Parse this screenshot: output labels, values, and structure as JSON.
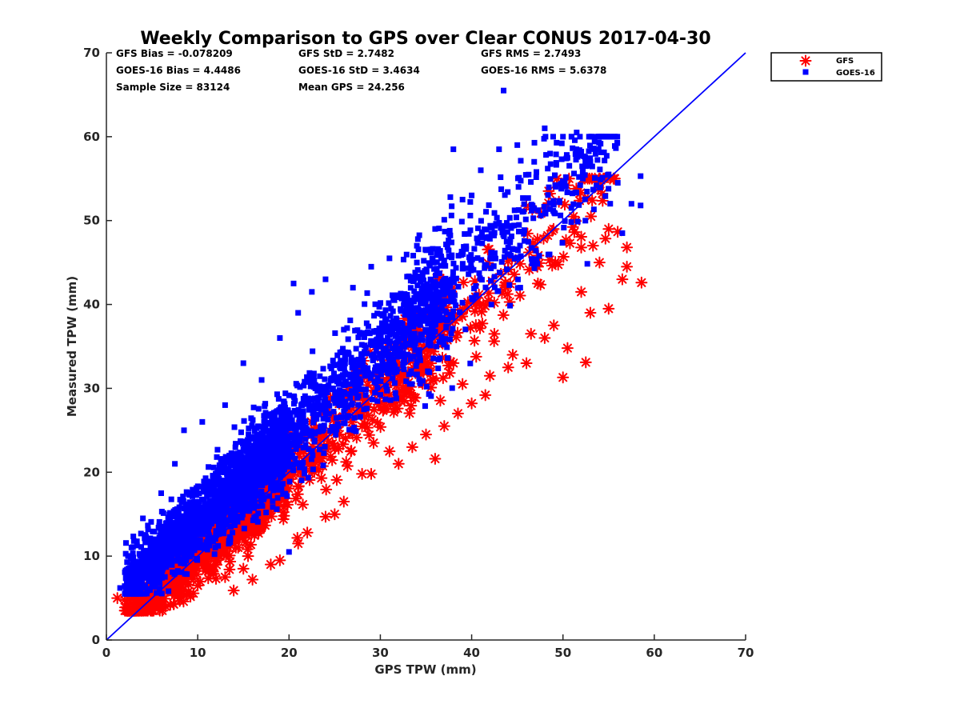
{
  "chart_data": {
    "type": "scatter",
    "title": "Weekly Comparison to GPS over Clear CONUS 2017-04-30",
    "xlabel": "GPS TPW (mm)",
    "ylabel": "Measured TPW (mm)",
    "xlim": [
      0,
      70
    ],
    "ylim": [
      0,
      70
    ],
    "xticks": [
      "0",
      "10",
      "20",
      "30",
      "40",
      "50",
      "60",
      "70"
    ],
    "yticks": [
      "0",
      "10",
      "20",
      "30",
      "40",
      "50",
      "60",
      "70"
    ],
    "grid": false,
    "legend_position": "top-right outside",
    "stats": [
      [
        "GFS Bias = -0.078209",
        "GFS StD = 2.7482",
        "GFS RMS = 2.7493"
      ],
      [
        "GOES-16 Bias = 4.4486",
        "GOES-16 StD = 3.4634",
        "GOES-16 RMS = 5.6378"
      ],
      [
        "Sample Size = 83124",
        "Mean GPS = 24.256",
        ""
      ]
    ],
    "reference_line": {
      "name": "1:1 line",
      "x": [
        0,
        70
      ],
      "y": [
        0,
        70
      ],
      "color": "#0000ff"
    },
    "series": [
      {
        "name": "GFS",
        "marker": "asterisk",
        "color": "#ff0000",
        "bias": -0.078209,
        "std": 2.7482,
        "points": [
          [
            1.2,
            5.0
          ],
          [
            3.0,
            4.0
          ],
          [
            5.0,
            4.6
          ],
          [
            7.0,
            4.2
          ],
          [
            9.0,
            5.8
          ],
          [
            12.0,
            7.3
          ],
          [
            15.0,
            8.5
          ],
          [
            16.0,
            7.2
          ],
          [
            19.0,
            9.5
          ],
          [
            22.0,
            12.8
          ],
          [
            24.0,
            14.7
          ],
          [
            26.0,
            16.5
          ],
          [
            28.0,
            19.8
          ],
          [
            31.0,
            22.5
          ],
          [
            33.5,
            23.0
          ],
          [
            36.0,
            21.6
          ],
          [
            37.0,
            25.5
          ],
          [
            39.0,
            30.5
          ],
          [
            40.0,
            28.2
          ],
          [
            41.5,
            29.2
          ],
          [
            44.0,
            32.5
          ],
          [
            46.0,
            33.0
          ],
          [
            48.0,
            36.0
          ],
          [
            50.0,
            31.3
          ],
          [
            50.5,
            34.8
          ],
          [
            52.5,
            33.1
          ],
          [
            53.0,
            39.0
          ],
          [
            55.0,
            39.5
          ],
          [
            56.5,
            43.0
          ],
          [
            57.0,
            44.5
          ],
          [
            57.0,
            46.8
          ],
          [
            58.6,
            42.6
          ],
          [
            55.0,
            49.0
          ],
          [
            54.0,
            45.0
          ],
          [
            52.0,
            41.5
          ],
          [
            49.0,
            37.5
          ],
          [
            46.5,
            36.5
          ],
          [
            44.5,
            34.0
          ],
          [
            42.0,
            31.5
          ],
          [
            38.5,
            27.0
          ],
          [
            35.0,
            24.5
          ],
          [
            32.0,
            21.0
          ],
          [
            29.0,
            19.8
          ],
          [
            25.0,
            15.0
          ],
          [
            21.0,
            11.5
          ],
          [
            18.0,
            9.0
          ],
          [
            13.0,
            7.5
          ],
          [
            10.0,
            6.5
          ],
          [
            8.0,
            5.0
          ],
          [
            6.0,
            4.3
          ],
          [
            4.0,
            4.4
          ],
          [
            2.5,
            4.8
          ]
        ]
      },
      {
        "name": "GOES-16",
        "marker": "square",
        "color": "#0000ff",
        "bias": 4.4486,
        "std": 3.4634,
        "points": [
          [
            1.5,
            6.2
          ],
          [
            4.0,
            14.5
          ],
          [
            6.0,
            17.5
          ],
          [
            7.5,
            21.0
          ],
          [
            8.5,
            25.0
          ],
          [
            10.5,
            26.0
          ],
          [
            13.0,
            28.0
          ],
          [
            15.0,
            33.0
          ],
          [
            17.0,
            31.0
          ],
          [
            19.0,
            36.0
          ],
          [
            20.5,
            42.5
          ],
          [
            22.5,
            41.5
          ],
          [
            24.0,
            43.0
          ],
          [
            27.0,
            42.0
          ],
          [
            29.0,
            44.5
          ],
          [
            31.0,
            45.5
          ],
          [
            34.0,
            47.0
          ],
          [
            36.0,
            49.0
          ],
          [
            39.0,
            52.5
          ],
          [
            40.0,
            53.0
          ],
          [
            41.0,
            56.0
          ],
          [
            43.0,
            58.5
          ],
          [
            43.5,
            65.5
          ],
          [
            45.0,
            59.0
          ],
          [
            48.0,
            61.0
          ],
          [
            50.0,
            60.0
          ],
          [
            51.5,
            60.5
          ],
          [
            53.0,
            57.0
          ],
          [
            55.0,
            55.5
          ],
          [
            56.0,
            54.5
          ],
          [
            57.5,
            52.0
          ],
          [
            58.5,
            55.3
          ],
          [
            58.5,
            51.8
          ],
          [
            56.5,
            48.5
          ],
          [
            38.0,
            58.5
          ],
          [
            34.0,
            45.0
          ],
          [
            26.0,
            37.0
          ],
          [
            21.0,
            39.0
          ],
          [
            16.0,
            20.5
          ],
          [
            12.0,
            13.0
          ],
          [
            3.0,
            8.0
          ],
          [
            20.0,
            10.5
          ]
        ]
      }
    ]
  }
}
